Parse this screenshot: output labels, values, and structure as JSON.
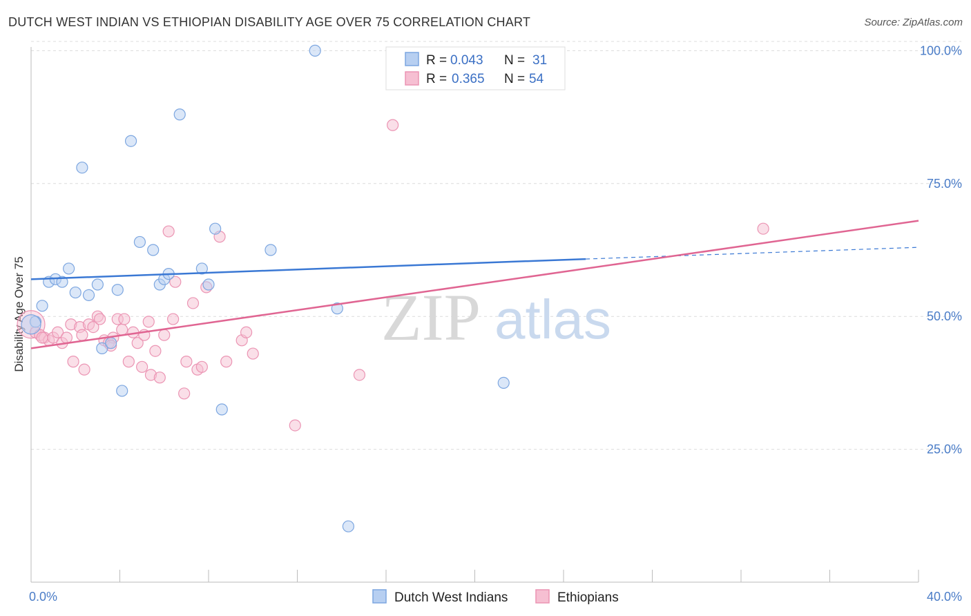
{
  "title": "DUTCH WEST INDIAN VS ETHIOPIAN DISABILITY AGE OVER 75 CORRELATION CHART",
  "source": "Source: ZipAtlas.com",
  "watermark": {
    "part1": "ZIP",
    "part2": "atlas"
  },
  "colors": {
    "blue": "#3a78d4",
    "blue_fill": "#b7cff1",
    "pink": "#e06592",
    "pink_fill": "#f6bfd2",
    "tick": "#4a7cc7",
    "grid": "#dcdcdc"
  },
  "legend": {
    "rows": [
      {
        "r_label": "R =",
        "r_value": "0.043",
        "n_label": "N =",
        "n_value": "31"
      },
      {
        "r_label": "R =",
        "r_value": "0.365",
        "n_label": "N =",
        "n_value": "54"
      }
    ]
  },
  "bottom_legend": [
    "Dutch West Indians",
    "Ethiopians"
  ],
  "chart_data": {
    "type": "scatter",
    "title": "DUTCH WEST INDIAN VS ETHIOPIAN DISABILITY AGE OVER 75 CORRELATION CHART",
    "xlabel": "",
    "ylabel": "Disability Age Over 75",
    "xlim": [
      0,
      40
    ],
    "ylim": [
      0,
      102
    ],
    "x_tick_labels": [
      "0.0%",
      "40.0%"
    ],
    "y_ticks": [
      25,
      50,
      75,
      100
    ],
    "y_tick_labels": [
      "25.0%",
      "50.0%",
      "75.0%",
      "100.0%"
    ],
    "series": [
      {
        "name": "Dutch West Indians",
        "r": 0.043,
        "n": 31,
        "trend": {
          "x_start": 0,
          "y_start": 57.0,
          "x_solid_end": 25,
          "y_solid_end": 60.8,
          "x_end": 40,
          "y_end": 63.0
        },
        "points": [
          [
            0.2,
            49.0
          ],
          [
            0.5,
            52.0
          ],
          [
            0.8,
            56.5
          ],
          [
            1.1,
            57.0
          ],
          [
            1.4,
            56.5
          ],
          [
            1.7,
            59.0
          ],
          [
            2.0,
            54.5
          ],
          [
            2.3,
            78.0
          ],
          [
            2.6,
            54.0
          ],
          [
            3.0,
            56.0
          ],
          [
            3.2,
            44.0
          ],
          [
            3.6,
            45.0
          ],
          [
            3.9,
            55.0
          ],
          [
            4.1,
            36.0
          ],
          [
            4.5,
            83.0
          ],
          [
            4.9,
            64.0
          ],
          [
            5.5,
            62.5
          ],
          [
            5.8,
            56.0
          ],
          [
            6.0,
            57.0
          ],
          [
            6.2,
            58.0
          ],
          [
            6.7,
            88.0
          ],
          [
            7.7,
            59.0
          ],
          [
            8.0,
            56.0
          ],
          [
            8.3,
            66.5
          ],
          [
            8.6,
            32.5
          ],
          [
            10.8,
            62.5
          ],
          [
            12.8,
            100.0
          ],
          [
            13.8,
            51.5
          ],
          [
            14.3,
            10.5
          ],
          [
            21.3,
            37.5
          ],
          [
            0.0,
            48.5
          ]
        ]
      },
      {
        "name": "Ethiopians",
        "r": 0.365,
        "n": 54,
        "trend": {
          "x_start": 0,
          "y_start": 44.0,
          "x_end": 40,
          "y_end": 68.0
        },
        "points": [
          [
            0.0,
            48.5
          ],
          [
            0.2,
            47.0
          ],
          [
            0.4,
            46.5
          ],
          [
            0.6,
            46.0
          ],
          [
            0.8,
            45.5
          ],
          [
            1.0,
            46.0
          ],
          [
            1.2,
            47.0
          ],
          [
            1.4,
            45.0
          ],
          [
            1.6,
            46.0
          ],
          [
            1.8,
            48.5
          ],
          [
            1.9,
            41.5
          ],
          [
            2.2,
            48.0
          ],
          [
            2.3,
            46.5
          ],
          [
            2.4,
            40.0
          ],
          [
            2.6,
            48.5
          ],
          [
            2.8,
            48.0
          ],
          [
            3.0,
            50.0
          ],
          [
            3.1,
            49.5
          ],
          [
            3.3,
            45.5
          ],
          [
            3.5,
            45.0
          ],
          [
            3.7,
            46.0
          ],
          [
            3.9,
            49.5
          ],
          [
            4.1,
            47.5
          ],
          [
            4.2,
            49.5
          ],
          [
            4.4,
            41.5
          ],
          [
            4.6,
            47.0
          ],
          [
            4.8,
            45.0
          ],
          [
            5.0,
            40.5
          ],
          [
            5.1,
            46.5
          ],
          [
            5.3,
            49.0
          ],
          [
            5.4,
            39.0
          ],
          [
            5.6,
            43.5
          ],
          [
            5.8,
            38.5
          ],
          [
            6.0,
            46.5
          ],
          [
            6.2,
            66.0
          ],
          [
            6.4,
            49.5
          ],
          [
            6.5,
            56.5
          ],
          [
            6.9,
            35.5
          ],
          [
            7.0,
            41.5
          ],
          [
            7.3,
            52.5
          ],
          [
            7.5,
            40.0
          ],
          [
            7.7,
            40.5
          ],
          [
            7.9,
            55.5
          ],
          [
            8.5,
            65.0
          ],
          [
            8.8,
            41.5
          ],
          [
            9.5,
            45.5
          ],
          [
            9.7,
            47.0
          ],
          [
            10.0,
            43.0
          ],
          [
            11.9,
            29.5
          ],
          [
            14.8,
            39.0
          ],
          [
            16.3,
            86.0
          ],
          [
            33.0,
            66.5
          ],
          [
            0.5,
            46.0
          ],
          [
            3.6,
            44.5
          ]
        ]
      }
    ]
  }
}
